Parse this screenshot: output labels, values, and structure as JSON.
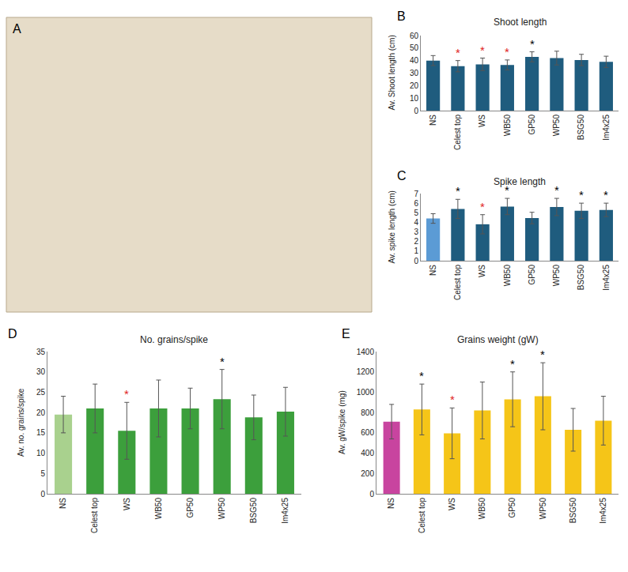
{
  "image_panel": {
    "label": "A"
  },
  "chart_data": [
    {
      "panel": "B",
      "type": "bar",
      "title": "Shoot length",
      "y_label": "Av. Shoot length (cm)",
      "categories": [
        "NS",
        "Celest top",
        "WS",
        "WB50",
        "GP50",
        "WP50",
        "BSG50",
        "Im4x25"
      ],
      "values": [
        40,
        35.5,
        37,
        36.5,
        43,
        42,
        40.5,
        39
      ],
      "errors": [
        4,
        4.5,
        5,
        4,
        4,
        5.5,
        4.5,
        4.5
      ],
      "colors": [
        "#1f5c7e",
        "#1f5c7e",
        "#1f5c7e",
        "#1f5c7e",
        "#1f5c7e",
        "#1f5c7e",
        "#1f5c7e",
        "#1f5c7e"
      ],
      "ylim": [
        0,
        60
      ],
      "yticks": [
        0,
        10,
        20,
        30,
        40,
        50,
        60
      ],
      "grid": false,
      "annotations": [
        {
          "category": "Celest top",
          "text": "*",
          "color": "#e02020"
        },
        {
          "category": "WS",
          "text": "*",
          "color": "#e02020"
        },
        {
          "category": "WB50",
          "text": "*",
          "color": "#e02020"
        },
        {
          "category": "GP50",
          "text": "*",
          "color": "#000000"
        }
      ]
    },
    {
      "panel": "C",
      "type": "bar",
      "title": "Spike length",
      "y_label": "Av. spike length (cm)",
      "categories": [
        "NS",
        "Celest top",
        "WS",
        "WB50",
        "GP50",
        "WP50",
        "BSG50",
        "Im4x25"
      ],
      "values": [
        4.4,
        5.4,
        3.8,
        5.65,
        4.45,
        5.6,
        5.2,
        5.3
      ],
      "errors": [
        0.5,
        1,
        1,
        0.85,
        0.6,
        0.9,
        0.8,
        0.7
      ],
      "colors": [
        "#5b9bd5",
        "#1f5c7e",
        "#1f5c7e",
        "#1f5c7e",
        "#1f5c7e",
        "#1f5c7e",
        "#1f5c7e",
        "#1f5c7e"
      ],
      "ylim": [
        0,
        7
      ],
      "yticks": [
        0,
        1,
        2,
        3,
        4,
        5,
        6,
        7
      ],
      "grid": false,
      "annotations": [
        {
          "category": "Celest top",
          "text": "*",
          "color": "#000000"
        },
        {
          "category": "WS",
          "text": "*",
          "color": "#e02020"
        },
        {
          "category": "WB50",
          "text": "*",
          "color": "#000000"
        },
        {
          "category": "WP50",
          "text": "*",
          "color": "#000000"
        },
        {
          "category": "BSG50",
          "text": "*",
          "color": "#000000"
        },
        {
          "category": "Im4x25",
          "text": "*",
          "color": "#000000"
        }
      ]
    },
    {
      "panel": "D",
      "type": "bar",
      "title": "No. grains/spike",
      "y_label": "Av. no. grains/spike",
      "categories": [
        "NS",
        "Celest top",
        "WS",
        "WB50",
        "GP50",
        "WP50",
        "BSG50",
        "Im4x25"
      ],
      "values": [
        19.5,
        21,
        15.5,
        21,
        21,
        23.3,
        18.8,
        20.2
      ],
      "errors": [
        4.5,
        6,
        7,
        7,
        5,
        7.3,
        5.5,
        6
      ],
      "colors": [
        "#a9d18e",
        "#3c9f3c",
        "#3c9f3c",
        "#3c9f3c",
        "#3c9f3c",
        "#3c9f3c",
        "#3c9f3c",
        "#3c9f3c"
      ],
      "ylim": [
        0,
        35
      ],
      "yticks": [
        0,
        5,
        10,
        15,
        20,
        25,
        30,
        35
      ],
      "grid": false,
      "annotations": [
        {
          "category": "WS",
          "text": "*",
          "color": "#e02020"
        },
        {
          "category": "WP50",
          "text": "*",
          "color": "#000000"
        }
      ]
    },
    {
      "panel": "E",
      "type": "bar",
      "title": "Grains weight (gW)",
      "y_label": "Av. gW/spike (mg)",
      "categories": [
        "NS",
        "Celest top",
        "WS",
        "WB50",
        "GP50",
        "WP50",
        "BSG50",
        "Im4x25"
      ],
      "values": [
        710,
        830,
        595,
        820,
        930,
        960,
        630,
        720
      ],
      "errors": [
        170,
        250,
        250,
        280,
        270,
        330,
        210,
        240
      ],
      "colors": [
        "#c8449f",
        "#f5c518",
        "#f5c518",
        "#f5c518",
        "#f5c518",
        "#f5c518",
        "#f5c518",
        "#f5c518"
      ],
      "ylim": [
        0,
        1400
      ],
      "yticks": [
        0,
        200,
        400,
        600,
        800,
        1000,
        1200,
        1400
      ],
      "grid": false,
      "annotations": [
        {
          "category": "Celest top",
          "text": "*",
          "color": "#000000"
        },
        {
          "category": "WS",
          "text": "*",
          "color": "#e02020"
        },
        {
          "category": "GP50",
          "text": "*",
          "color": "#000000"
        },
        {
          "category": "WP50",
          "text": "*",
          "color": "#000000"
        }
      ]
    }
  ]
}
